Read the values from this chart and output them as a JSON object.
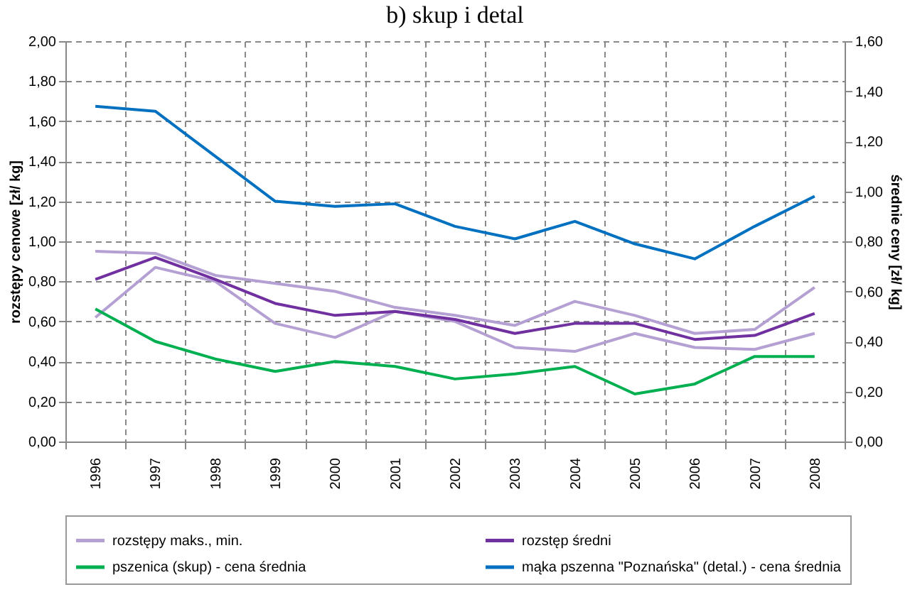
{
  "chart_data": {
    "type": "line",
    "title": "b) skup i detal",
    "categories": [
      "1996",
      "1997",
      "1998",
      "1999",
      "2000",
      "2001",
      "2002",
      "2003",
      "2004",
      "2005",
      "2006",
      "2007",
      "2008"
    ],
    "series": [
      {
        "name": "rozstępy maks., min.",
        "color": "#b4a0d2",
        "values": [
          0.95,
          0.94,
          0.83,
          0.79,
          0.75,
          0.67,
          0.63,
          0.58,
          0.7,
          0.63,
          0.54,
          0.56,
          0.77
        ]
      },
      {
        "color": "#b4a0d2",
        "values": [
          0.62,
          0.87,
          0.8,
          0.59,
          0.52,
          0.65,
          0.6,
          0.47,
          0.45,
          0.54,
          0.47,
          0.46,
          0.54
        ]
      },
      {
        "name": "rozstęp średni",
        "color": "#7030a0",
        "values": [
          0.81,
          0.92,
          0.81,
          0.69,
          0.63,
          0.65,
          0.61,
          0.54,
          0.59,
          0.59,
          0.51,
          0.53,
          0.64
        ]
      },
      {
        "name": "pszenica (skup) - cena średnia",
        "color": "#00b050",
        "axis": "y2",
        "values": [
          0.53,
          0.4,
          0.33,
          0.28,
          0.32,
          0.3,
          0.25,
          0.27,
          0.3,
          0.19,
          0.23,
          0.34,
          0.34
        ]
      },
      {
        "name": "mąka pszenna \"Poznańska\" (detal.) - cena średnia",
        "color": "#0070c0",
        "axis": "y2",
        "values": [
          1.34,
          1.32,
          1.14,
          0.96,
          0.94,
          0.95,
          0.86,
          0.81,
          0.88,
          0.79,
          0.73,
          0.86,
          0.98
        ]
      }
    ],
    "ylabel": "rozstępy cenowe [zł/ kg]",
    "y2label": "średnie ceny [zł/ kg]",
    "ylim": [
      0,
      2
    ],
    "yticks": [
      {
        "value": 0,
        "label": "0,00"
      },
      {
        "value": 0.2,
        "label": "0,20"
      },
      {
        "value": 0.4,
        "label": "0,40"
      },
      {
        "value": 0.6,
        "label": "0,60"
      },
      {
        "value": 0.8,
        "label": "0,80"
      },
      {
        "value": 1.0,
        "label": "1,00"
      },
      {
        "value": 1.2,
        "label": "1,20"
      },
      {
        "value": 1.4,
        "label": "1,40"
      },
      {
        "value": 1.6,
        "label": "1,60"
      },
      {
        "value": 1.8,
        "label": "1,80"
      },
      {
        "value": 2.0,
        "label": "2,00"
      }
    ],
    "y2lim": [
      0,
      1.6
    ],
    "y2ticks": [
      {
        "value": 0,
        "label": "0,00"
      },
      {
        "value": 0.2,
        "label": "0,20"
      },
      {
        "value": 0.4,
        "label": "0,40"
      },
      {
        "value": 0.6,
        "label": "0,60"
      },
      {
        "value": 0.8,
        "label": "0,80"
      },
      {
        "value": 1.0,
        "label": "1,00"
      },
      {
        "value": 1.2,
        "label": "1,20"
      },
      {
        "value": 1.4,
        "label": "1,40"
      },
      {
        "value": 1.6,
        "label": "1,60"
      }
    ],
    "grid": true,
    "legend": "bottom",
    "marker": "none",
    "line_style": "solid"
  }
}
